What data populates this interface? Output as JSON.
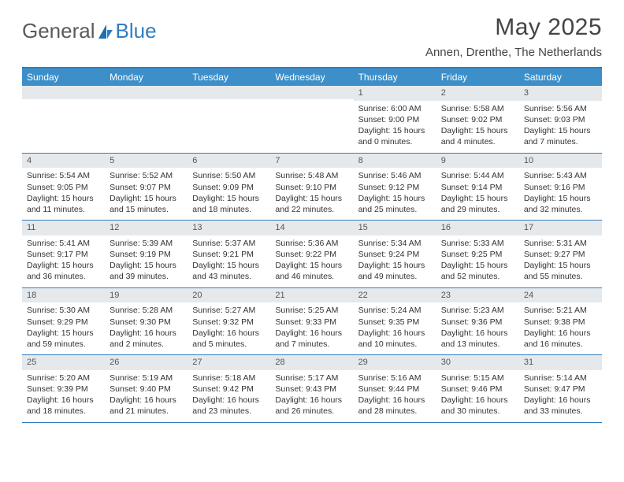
{
  "brand": {
    "part1": "General",
    "part2": "Blue"
  },
  "title": "May 2025",
  "location": "Annen, Drenthe, The Netherlands",
  "colors": {
    "header_bar": "#3d8fc9",
    "accent_line": "#2f7ec0",
    "daynum_bg": "#e6e9ec",
    "text": "#333333",
    "background": "#ffffff"
  },
  "fonts": {
    "base_family": "Arial",
    "title_size_pt": 30,
    "location_size_pt": 15,
    "dow_size_pt": 12,
    "cell_size_pt": 10.5
  },
  "days_of_week": [
    "Sunday",
    "Monday",
    "Tuesday",
    "Wednesday",
    "Thursday",
    "Friday",
    "Saturday"
  ],
  "weeks": [
    [
      {
        "n": "",
        "sunrise": "",
        "sunset": "",
        "daylight": ""
      },
      {
        "n": "",
        "sunrise": "",
        "sunset": "",
        "daylight": ""
      },
      {
        "n": "",
        "sunrise": "",
        "sunset": "",
        "daylight": ""
      },
      {
        "n": "",
        "sunrise": "",
        "sunset": "",
        "daylight": ""
      },
      {
        "n": "1",
        "sunrise": "Sunrise: 6:00 AM",
        "sunset": "Sunset: 9:00 PM",
        "daylight": "Daylight: 15 hours and 0 minutes."
      },
      {
        "n": "2",
        "sunrise": "Sunrise: 5:58 AM",
        "sunset": "Sunset: 9:02 PM",
        "daylight": "Daylight: 15 hours and 4 minutes."
      },
      {
        "n": "3",
        "sunrise": "Sunrise: 5:56 AM",
        "sunset": "Sunset: 9:03 PM",
        "daylight": "Daylight: 15 hours and 7 minutes."
      }
    ],
    [
      {
        "n": "4",
        "sunrise": "Sunrise: 5:54 AM",
        "sunset": "Sunset: 9:05 PM",
        "daylight": "Daylight: 15 hours and 11 minutes."
      },
      {
        "n": "5",
        "sunrise": "Sunrise: 5:52 AM",
        "sunset": "Sunset: 9:07 PM",
        "daylight": "Daylight: 15 hours and 15 minutes."
      },
      {
        "n": "6",
        "sunrise": "Sunrise: 5:50 AM",
        "sunset": "Sunset: 9:09 PM",
        "daylight": "Daylight: 15 hours and 18 minutes."
      },
      {
        "n": "7",
        "sunrise": "Sunrise: 5:48 AM",
        "sunset": "Sunset: 9:10 PM",
        "daylight": "Daylight: 15 hours and 22 minutes."
      },
      {
        "n": "8",
        "sunrise": "Sunrise: 5:46 AM",
        "sunset": "Sunset: 9:12 PM",
        "daylight": "Daylight: 15 hours and 25 minutes."
      },
      {
        "n": "9",
        "sunrise": "Sunrise: 5:44 AM",
        "sunset": "Sunset: 9:14 PM",
        "daylight": "Daylight: 15 hours and 29 minutes."
      },
      {
        "n": "10",
        "sunrise": "Sunrise: 5:43 AM",
        "sunset": "Sunset: 9:16 PM",
        "daylight": "Daylight: 15 hours and 32 minutes."
      }
    ],
    [
      {
        "n": "11",
        "sunrise": "Sunrise: 5:41 AM",
        "sunset": "Sunset: 9:17 PM",
        "daylight": "Daylight: 15 hours and 36 minutes."
      },
      {
        "n": "12",
        "sunrise": "Sunrise: 5:39 AM",
        "sunset": "Sunset: 9:19 PM",
        "daylight": "Daylight: 15 hours and 39 minutes."
      },
      {
        "n": "13",
        "sunrise": "Sunrise: 5:37 AM",
        "sunset": "Sunset: 9:21 PM",
        "daylight": "Daylight: 15 hours and 43 minutes."
      },
      {
        "n": "14",
        "sunrise": "Sunrise: 5:36 AM",
        "sunset": "Sunset: 9:22 PM",
        "daylight": "Daylight: 15 hours and 46 minutes."
      },
      {
        "n": "15",
        "sunrise": "Sunrise: 5:34 AM",
        "sunset": "Sunset: 9:24 PM",
        "daylight": "Daylight: 15 hours and 49 minutes."
      },
      {
        "n": "16",
        "sunrise": "Sunrise: 5:33 AM",
        "sunset": "Sunset: 9:25 PM",
        "daylight": "Daylight: 15 hours and 52 minutes."
      },
      {
        "n": "17",
        "sunrise": "Sunrise: 5:31 AM",
        "sunset": "Sunset: 9:27 PM",
        "daylight": "Daylight: 15 hours and 55 minutes."
      }
    ],
    [
      {
        "n": "18",
        "sunrise": "Sunrise: 5:30 AM",
        "sunset": "Sunset: 9:29 PM",
        "daylight": "Daylight: 15 hours and 59 minutes."
      },
      {
        "n": "19",
        "sunrise": "Sunrise: 5:28 AM",
        "sunset": "Sunset: 9:30 PM",
        "daylight": "Daylight: 16 hours and 2 minutes."
      },
      {
        "n": "20",
        "sunrise": "Sunrise: 5:27 AM",
        "sunset": "Sunset: 9:32 PM",
        "daylight": "Daylight: 16 hours and 5 minutes."
      },
      {
        "n": "21",
        "sunrise": "Sunrise: 5:25 AM",
        "sunset": "Sunset: 9:33 PM",
        "daylight": "Daylight: 16 hours and 7 minutes."
      },
      {
        "n": "22",
        "sunrise": "Sunrise: 5:24 AM",
        "sunset": "Sunset: 9:35 PM",
        "daylight": "Daylight: 16 hours and 10 minutes."
      },
      {
        "n": "23",
        "sunrise": "Sunrise: 5:23 AM",
        "sunset": "Sunset: 9:36 PM",
        "daylight": "Daylight: 16 hours and 13 minutes."
      },
      {
        "n": "24",
        "sunrise": "Sunrise: 5:21 AM",
        "sunset": "Sunset: 9:38 PM",
        "daylight": "Daylight: 16 hours and 16 minutes."
      }
    ],
    [
      {
        "n": "25",
        "sunrise": "Sunrise: 5:20 AM",
        "sunset": "Sunset: 9:39 PM",
        "daylight": "Daylight: 16 hours and 18 minutes."
      },
      {
        "n": "26",
        "sunrise": "Sunrise: 5:19 AM",
        "sunset": "Sunset: 9:40 PM",
        "daylight": "Daylight: 16 hours and 21 minutes."
      },
      {
        "n": "27",
        "sunrise": "Sunrise: 5:18 AM",
        "sunset": "Sunset: 9:42 PM",
        "daylight": "Daylight: 16 hours and 23 minutes."
      },
      {
        "n": "28",
        "sunrise": "Sunrise: 5:17 AM",
        "sunset": "Sunset: 9:43 PM",
        "daylight": "Daylight: 16 hours and 26 minutes."
      },
      {
        "n": "29",
        "sunrise": "Sunrise: 5:16 AM",
        "sunset": "Sunset: 9:44 PM",
        "daylight": "Daylight: 16 hours and 28 minutes."
      },
      {
        "n": "30",
        "sunrise": "Sunrise: 5:15 AM",
        "sunset": "Sunset: 9:46 PM",
        "daylight": "Daylight: 16 hours and 30 minutes."
      },
      {
        "n": "31",
        "sunrise": "Sunrise: 5:14 AM",
        "sunset": "Sunset: 9:47 PM",
        "daylight": "Daylight: 16 hours and 33 minutes."
      }
    ]
  ]
}
